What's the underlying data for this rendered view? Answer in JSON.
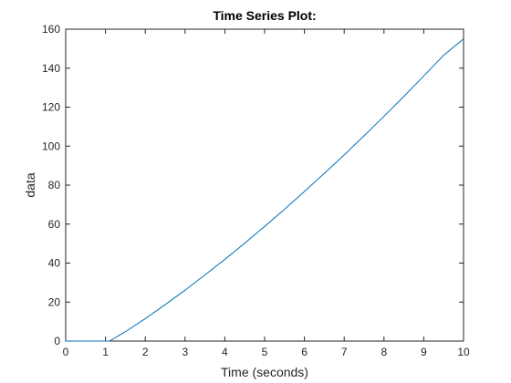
{
  "chart_data": {
    "type": "line",
    "title": "Time Series Plot:",
    "xlabel": "Time (seconds)",
    "ylabel": "data",
    "xlim": [
      0,
      10
    ],
    "ylim": [
      0,
      160
    ],
    "xticks": [
      0,
      1,
      2,
      3,
      4,
      5,
      6,
      7,
      8,
      9,
      10
    ],
    "yticks": [
      0,
      20,
      40,
      60,
      80,
      100,
      120,
      140,
      160
    ],
    "grid": false,
    "line_color": "#0072BD",
    "series": [
      {
        "x": [
          0,
          0.5,
          1.0,
          1.1,
          1.5,
          2,
          2.5,
          3,
          3.5,
          4,
          4.5,
          5,
          5.5,
          6,
          6.5,
          7,
          7.5,
          8,
          8.5,
          9,
          9.5,
          10
        ],
        "values": [
          0,
          0,
          0,
          0,
          4.8,
          11.5,
          18.7,
          26.1,
          33.9,
          41.9,
          50.2,
          58.8,
          67.6,
          76.7,
          86.0,
          95.5,
          105.3,
          115.3,
          125.5,
          136.0,
          146.6,
          155.0
        ]
      }
    ]
  }
}
